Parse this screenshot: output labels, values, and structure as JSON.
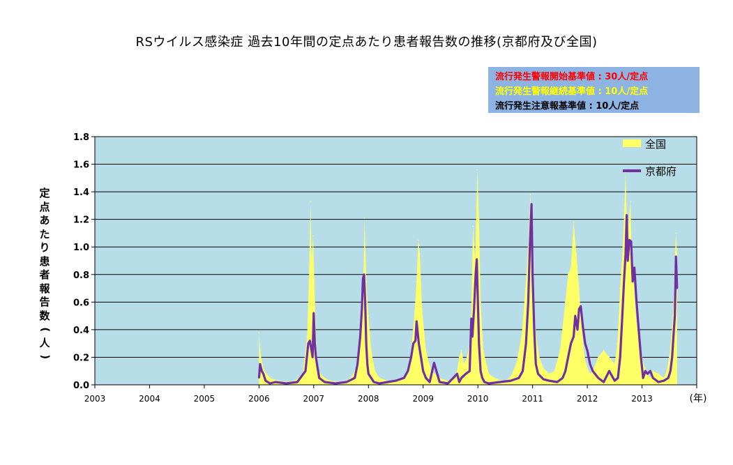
{
  "title": "RSウイルス感染症 過去10年間の定点あたり患者報告数の推移(京都府及び全国)",
  "thresholds": [
    {
      "text": "流行発生警報開始基準値 : 30人/定点",
      "color": "#ff0000"
    },
    {
      "text": "流行発生警報継続基準値 : 10人/定点",
      "color": "#ffff00"
    },
    {
      "text": "流行発生注意報基準値 : 10人/定点",
      "color": "#000000"
    }
  ],
  "colors": {
    "plot_bg": "#b7dde8",
    "national": "#ffff66",
    "kyoto": "#7030a0",
    "threshold_box": "#8db3e2"
  },
  "chart_data": {
    "type": "area",
    "title": "RSウイルス感染症 過去10年間の定点あたり患者報告数の推移(京都府及び全国)",
    "ylabel": "定点あたり患者報告数(人)",
    "xlabel": "(年)",
    "ylim": [
      0,
      1.8
    ],
    "y_ticks": [
      "0.0",
      "0.2",
      "0.4",
      "0.6",
      "0.8",
      "1.0",
      "1.2",
      "1.4",
      "1.6",
      "1.8"
    ],
    "xlim": [
      2003,
      2014
    ],
    "x_ticks": [
      "2003",
      "2004",
      "2005",
      "2006",
      "2007",
      "2008",
      "2009",
      "2010",
      "2011",
      "2012",
      "2013"
    ],
    "grid": "horizontal",
    "legend_position": "top-right",
    "series": [
      {
        "name": "全国",
        "type": "area",
        "x": [
          2006.0,
          2006.02,
          2006.06,
          2006.1,
          2006.2,
          2006.35,
          2006.5,
          2006.65,
          2006.8,
          2006.88,
          2006.92,
          2006.94,
          2006.96,
          2006.99,
          2007.02,
          2007.05,
          2007.08,
          2007.12,
          2007.2,
          2007.3,
          2007.45,
          2007.6,
          2007.7,
          2007.8,
          2007.87,
          2007.91,
          2007.93,
          2007.96,
          2008.0,
          2008.05,
          2008.12,
          2008.2,
          2008.35,
          2008.5,
          2008.65,
          2008.75,
          2008.82,
          2008.88,
          2008.91,
          2008.94,
          2008.98,
          2009.05,
          2009.15,
          2009.3,
          2009.45,
          2009.55,
          2009.62,
          2009.66,
          2009.7,
          2009.75,
          2009.8,
          2009.85,
          2009.88,
          2009.91,
          2009.95,
          2009.99,
          2010.02,
          2010.05,
          2010.1,
          2010.2,
          2010.35,
          2010.5,
          2010.6,
          2010.7,
          2010.8,
          2010.87,
          2010.92,
          2010.96,
          2011.0,
          2011.05,
          2011.12,
          2011.2,
          2011.3,
          2011.4,
          2011.5,
          2011.6,
          2011.65,
          2011.7,
          2011.75,
          2011.8,
          2011.85,
          2011.9,
          2011.95,
          2012.0,
          2012.05,
          2012.1,
          2012.2,
          2012.3,
          2012.4,
          2012.5,
          2012.55,
          2012.6,
          2012.65,
          2012.7,
          2012.73,
          2012.76,
          2012.79,
          2012.81,
          2012.84,
          2012.87,
          2012.9,
          2012.95,
          2013.0,
          2013.05,
          2013.1,
          2013.15,
          2013.2,
          2013.3,
          2013.4,
          2013.45,
          2013.5,
          2013.55,
          2013.58,
          2013.6,
          2013.62,
          2013.64
        ],
        "values": [
          0.38,
          0.25,
          0.15,
          0.1,
          0.05,
          0.03,
          0.02,
          0.03,
          0.08,
          0.35,
          0.85,
          1.33,
          0.9,
          1.08,
          0.6,
          0.25,
          0.12,
          0.08,
          0.05,
          0.03,
          0.02,
          0.03,
          0.06,
          0.15,
          0.4,
          0.8,
          1.21,
          0.75,
          0.5,
          0.25,
          0.1,
          0.05,
          0.03,
          0.02,
          0.05,
          0.15,
          0.4,
          0.75,
          1.05,
          0.95,
          0.55,
          0.25,
          0.1,
          0.05,
          0.03,
          0.05,
          0.1,
          0.2,
          0.25,
          0.15,
          0.2,
          0.3,
          0.5,
          1.15,
          0.9,
          1.56,
          1.2,
          0.6,
          0.25,
          0.08,
          0.04,
          0.03,
          0.06,
          0.15,
          0.35,
          0.7,
          1.0,
          1.38,
          0.8,
          0.4,
          0.2,
          0.12,
          0.08,
          0.1,
          0.25,
          0.6,
          0.8,
          0.85,
          1.18,
          0.95,
          0.7,
          0.4,
          0.2,
          0.12,
          0.08,
          0.1,
          0.2,
          0.25,
          0.2,
          0.15,
          0.3,
          0.7,
          1.0,
          1.54,
          1.05,
          1.2,
          1.33,
          0.95,
          0.8,
          0.6,
          0.45,
          0.3,
          0.2,
          0.12,
          0.08,
          0.05,
          0.1,
          0.08,
          0.05,
          0.1,
          0.2,
          0.42,
          0.6,
          0.9,
          1.1,
          0.95
        ]
      },
      {
        "name": "京都府",
        "type": "line",
        "x": [
          2006.0,
          2006.02,
          2006.05,
          2006.08,
          2006.12,
          2006.2,
          2006.3,
          2006.5,
          2006.7,
          2006.85,
          2006.9,
          2006.93,
          2006.96,
          2006.98,
          2007.0,
          2007.02,
          2007.04,
          2007.06,
          2007.1,
          2007.2,
          2007.4,
          2007.6,
          2007.75,
          2007.8,
          2007.85,
          2007.88,
          2007.9,
          2007.92,
          2007.94,
          2007.96,
          2007.98,
          2008.0,
          2008.05,
          2008.1,
          2008.2,
          2008.35,
          2008.5,
          2008.65,
          2008.72,
          2008.78,
          2008.82,
          2008.86,
          2008.88,
          2008.92,
          2008.96,
          2009.0,
          2009.05,
          2009.12,
          2009.2,
          2009.3,
          2009.45,
          2009.55,
          2009.62,
          2009.66,
          2009.7,
          2009.78,
          2009.85,
          2009.88,
          2009.9,
          2009.93,
          2009.96,
          2009.98,
          2010.0,
          2010.02,
          2010.05,
          2010.08,
          2010.12,
          2010.2,
          2010.4,
          2010.6,
          2010.75,
          2010.82,
          2010.88,
          2010.92,
          2010.95,
          2010.98,
          2011.0,
          2011.03,
          2011.06,
          2011.1,
          2011.2,
          2011.3,
          2011.45,
          2011.55,
          2011.6,
          2011.65,
          2011.7,
          2011.75,
          2011.78,
          2011.82,
          2011.85,
          2011.88,
          2011.92,
          2011.96,
          2012.0,
          2012.05,
          2012.1,
          2012.2,
          2012.3,
          2012.4,
          2012.5,
          2012.56,
          2012.6,
          2012.64,
          2012.67,
          2012.7,
          2012.72,
          2012.74,
          2012.77,
          2012.8,
          2012.83,
          2012.86,
          2012.9,
          2012.94,
          2012.98,
          2013.02,
          2013.06,
          2013.1,
          2013.15,
          2013.2,
          2013.3,
          2013.4,
          2013.48,
          2013.52,
          2013.55,
          2013.58,
          2013.6,
          2013.62,
          2013.64
        ],
        "values": [
          0.05,
          0.15,
          0.1,
          0.08,
          0.03,
          0.01,
          0.02,
          0.01,
          0.02,
          0.1,
          0.3,
          0.32,
          0.25,
          0.2,
          0.52,
          0.3,
          0.2,
          0.15,
          0.05,
          0.02,
          0.01,
          0.02,
          0.05,
          0.15,
          0.35,
          0.55,
          0.77,
          0.8,
          0.6,
          0.3,
          0.15,
          0.08,
          0.05,
          0.02,
          0.01,
          0.02,
          0.03,
          0.05,
          0.1,
          0.2,
          0.3,
          0.32,
          0.46,
          0.3,
          0.2,
          0.1,
          0.05,
          0.02,
          0.16,
          0.02,
          0.01,
          0.05,
          0.08,
          0.02,
          0.05,
          0.08,
          0.1,
          0.48,
          0.35,
          0.55,
          0.8,
          0.91,
          0.6,
          0.3,
          0.1,
          0.05,
          0.02,
          0.01,
          0.02,
          0.03,
          0.05,
          0.1,
          0.3,
          0.6,
          1.0,
          1.31,
          0.8,
          0.4,
          0.15,
          0.08,
          0.04,
          0.03,
          0.02,
          0.05,
          0.1,
          0.2,
          0.3,
          0.35,
          0.5,
          0.4,
          0.55,
          0.57,
          0.42,
          0.3,
          0.25,
          0.15,
          0.1,
          0.05,
          0.02,
          0.1,
          0.03,
          0.05,
          0.2,
          0.5,
          0.75,
          0.95,
          1.23,
          0.9,
          1.05,
          1.04,
          0.75,
          0.85,
          0.6,
          0.4,
          0.2,
          0.05,
          0.1,
          0.08,
          0.1,
          0.05,
          0.02,
          0.03,
          0.05,
          0.1,
          0.2,
          0.38,
          0.5,
          0.93,
          0.7
        ]
      }
    ]
  }
}
